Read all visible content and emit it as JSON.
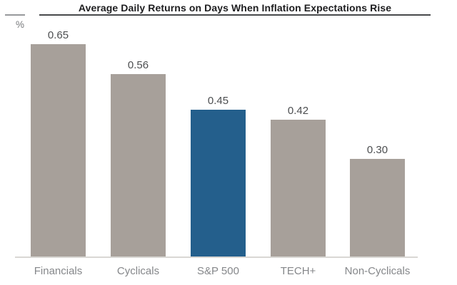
{
  "title": "Average Daily Returns on Days When Inflation Expectations Rise",
  "y_axis_unit": "%",
  "chart_data": {
    "type": "bar",
    "title": "Average Daily Returns on Days When Inflation Expectations Rise",
    "xlabel": "",
    "ylabel": "%",
    "categories": [
      "Financials",
      "Cyclicals",
      "S&P 500",
      "TECH+",
      "Non-Cyclicals"
    ],
    "values": [
      0.65,
      0.56,
      0.45,
      0.42,
      0.3
    ],
    "value_labels": [
      "0.65",
      "0.56",
      "0.45",
      "0.42",
      "0.30"
    ],
    "highlight_index": 2,
    "highlight_category": "S&P 500",
    "bar_color": "#a7a09a",
    "highlight_color": "#245f8c",
    "ylim": [
      0,
      0.7
    ],
    "grid": false,
    "legend": false
  }
}
